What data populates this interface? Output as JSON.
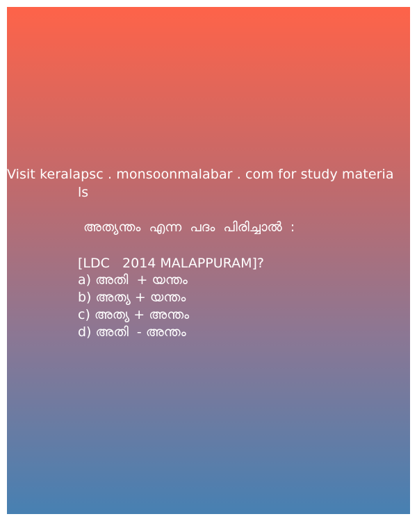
{
  "promo": {
    "line1": "Visit keralapsc . monsoonmalabar . com for study materia",
    "line2": "ls"
  },
  "question": {
    "text": "അത്യന്തം  എന്ന  പദം  പിരിച്ചാൽ  :",
    "exam": "[LDC   2014 MALAPPURAM]?"
  },
  "options": [
    "a) അതി  + യന്തം",
    "b) അത്യ + യന്തം",
    "c) അത്യ + അന്തം",
    "d) അതി  - അന്തം"
  ],
  "colors": {
    "gradient_top": "#fe6349",
    "gradient_bottom": "#4780b2",
    "text": "#ffffff"
  }
}
